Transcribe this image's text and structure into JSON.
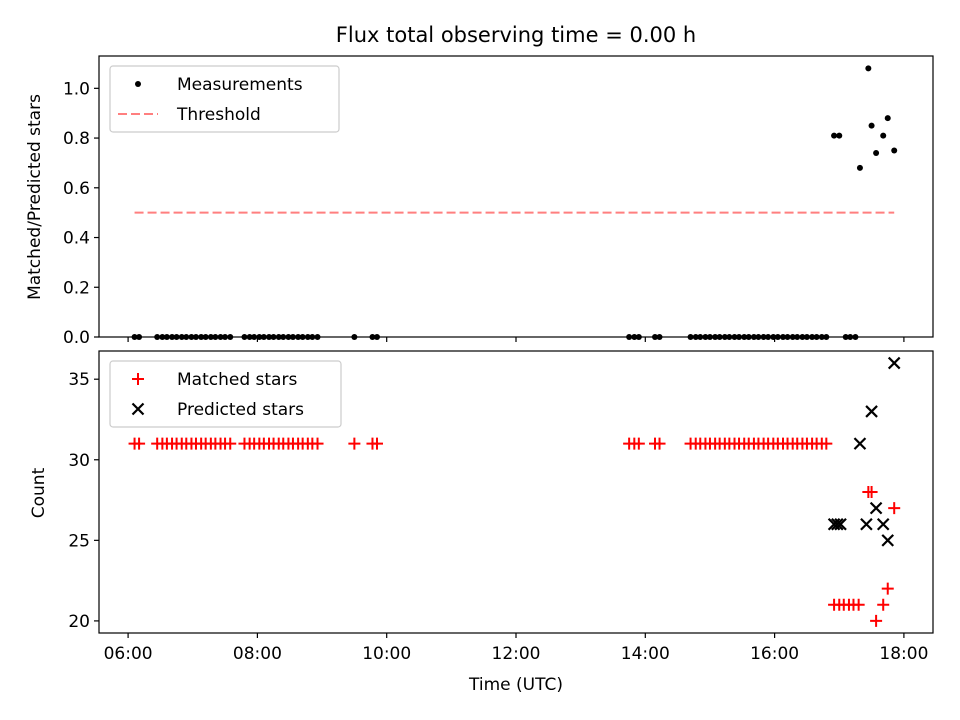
{
  "chart_data": [
    {
      "type": "scatter",
      "title": "Flux total observing time = 0.00 h",
      "xlabel": "",
      "ylabel": "Matched/Predicted stars",
      "xlim": [
        5.55,
        18.45
      ],
      "ylim": [
        0.0,
        1.13
      ],
      "yticks": [
        0.0,
        0.2,
        0.4,
        0.6,
        0.8,
        1.0
      ],
      "ytick_labels": [
        "0.0",
        "0.2",
        "0.4",
        "0.6",
        "0.8",
        "1.0"
      ],
      "legend": {
        "placement": "top-left",
        "entries": [
          "Measurements",
          "Threshold"
        ]
      },
      "series": [
        {
          "name": "Measurements",
          "marker": "dot",
          "color": "#000000",
          "x": [
            6.1,
            6.17,
            6.45,
            6.53,
            6.6,
            6.68,
            6.75,
            6.83,
            6.9,
            6.98,
            7.05,
            7.13,
            7.2,
            7.28,
            7.35,
            7.43,
            7.5,
            7.58,
            7.8,
            7.88,
            7.95,
            8.03,
            8.1,
            8.18,
            8.25,
            8.33,
            8.4,
            8.48,
            8.55,
            8.63,
            8.7,
            8.78,
            8.85,
            8.93,
            9.5,
            9.78,
            9.85,
            13.75,
            13.83,
            13.9,
            14.15,
            14.22,
            14.7,
            14.78,
            14.85,
            14.93,
            15.0,
            15.08,
            15.15,
            15.23,
            15.3,
            15.38,
            15.45,
            15.53,
            15.6,
            15.68,
            15.75,
            15.83,
            15.9,
            15.98,
            16.05,
            16.13,
            16.2,
            16.28,
            16.35,
            16.43,
            16.5,
            16.58,
            16.65,
            16.73,
            16.8,
            17.1,
            17.17,
            17.25,
            16.92,
            17.0,
            17.32,
            17.45,
            17.5,
            17.57,
            17.68,
            17.75,
            17.85
          ],
          "y": [
            0,
            0,
            0,
            0,
            0,
            0,
            0,
            0,
            0,
            0,
            0,
            0,
            0,
            0,
            0,
            0,
            0,
            0,
            0,
            0,
            0,
            0,
            0,
            0,
            0,
            0,
            0,
            0,
            0,
            0,
            0,
            0,
            0,
            0,
            0,
            0,
            0,
            0,
            0,
            0,
            0,
            0,
            0,
            0,
            0,
            0,
            0,
            0,
            0,
            0,
            0,
            0,
            0,
            0,
            0,
            0,
            0,
            0,
            0,
            0,
            0,
            0,
            0,
            0,
            0,
            0,
            0,
            0,
            0,
            0,
            0,
            0,
            0,
            0,
            0.81,
            0.81,
            0.68,
            1.08,
            0.85,
            0.74,
            0.81,
            0.88,
            0.75
          ]
        },
        {
          "name": "Threshold",
          "type": "line",
          "style": "dashed",
          "color": "#ff7f7f",
          "x": [
            6.1,
            17.85
          ],
          "y": [
            0.5,
            0.5
          ]
        }
      ]
    },
    {
      "type": "scatter",
      "title": "",
      "xlabel": "Time (UTC)",
      "ylabel": "Count",
      "xlim": [
        5.55,
        18.45
      ],
      "ylim": [
        19.25,
        36.75
      ],
      "xticks": [
        6,
        8,
        10,
        12,
        14,
        16,
        18
      ],
      "xtick_labels": [
        "06:00",
        "08:00",
        "10:00",
        "12:00",
        "14:00",
        "16:00",
        "18:00"
      ],
      "yticks": [
        20,
        25,
        30,
        35
      ],
      "ytick_labels": [
        "20",
        "25",
        "30",
        "35"
      ],
      "legend": {
        "placement": "top-left",
        "entries": [
          "Matched stars",
          "Predicted stars"
        ]
      },
      "series": [
        {
          "name": "Matched stars",
          "marker": "plus",
          "color": "#ff0000",
          "x": [
            6.1,
            6.17,
            6.45,
            6.53,
            6.6,
            6.68,
            6.75,
            6.83,
            6.9,
            6.98,
            7.05,
            7.13,
            7.2,
            7.28,
            7.35,
            7.43,
            7.5,
            7.58,
            7.8,
            7.88,
            7.95,
            8.03,
            8.1,
            8.18,
            8.25,
            8.33,
            8.4,
            8.48,
            8.55,
            8.63,
            8.7,
            8.78,
            8.85,
            8.93,
            9.5,
            9.78,
            9.85,
            13.75,
            13.83,
            13.9,
            14.15,
            14.22,
            14.7,
            14.78,
            14.85,
            14.93,
            15.0,
            15.08,
            15.15,
            15.23,
            15.3,
            15.38,
            15.45,
            15.53,
            15.6,
            15.68,
            15.75,
            15.83,
            15.9,
            15.98,
            16.05,
            16.13,
            16.2,
            16.28,
            16.35,
            16.43,
            16.5,
            16.58,
            16.65,
            16.73,
            16.8,
            16.92,
            17.0,
            17.07,
            17.15,
            17.22,
            17.3,
            17.45,
            17.5,
            17.57,
            17.68,
            17.75,
            17.85
          ],
          "y": [
            31,
            31,
            31,
            31,
            31,
            31,
            31,
            31,
            31,
            31,
            31,
            31,
            31,
            31,
            31,
            31,
            31,
            31,
            31,
            31,
            31,
            31,
            31,
            31,
            31,
            31,
            31,
            31,
            31,
            31,
            31,
            31,
            31,
            31,
            31,
            31,
            31,
            31,
            31,
            31,
            31,
            31,
            31,
            31,
            31,
            31,
            31,
            31,
            31,
            31,
            31,
            31,
            31,
            31,
            31,
            31,
            31,
            31,
            31,
            31,
            31,
            31,
            31,
            31,
            31,
            31,
            31,
            31,
            31,
            31,
            31,
            21,
            21,
            21,
            21,
            21,
            21,
            28,
            28,
            20,
            21,
            22,
            27
          ]
        },
        {
          "name": "Predicted stars",
          "marker": "x",
          "color": "#000000",
          "x": [
            16.92,
            16.97,
            17.02,
            17.32,
            17.42,
            17.5,
            17.57,
            17.68,
            17.75,
            17.85
          ],
          "y": [
            26,
            26,
            26,
            31,
            26,
            33,
            27,
            26,
            25,
            36
          ]
        }
      ]
    }
  ]
}
